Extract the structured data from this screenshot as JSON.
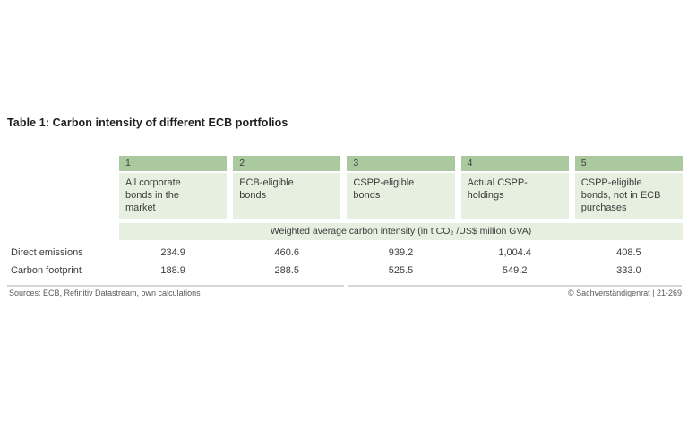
{
  "title": "Table 1: Carbon intensity of different ECB portfolios",
  "table": {
    "columns": [
      {
        "number": "1",
        "label": "All corporate bonds in the market"
      },
      {
        "number": "2",
        "label": "ECB-eligible bonds"
      },
      {
        "number": "3",
        "label": "CSPP-eligible bonds"
      },
      {
        "number": "4",
        "label": "Actual CSPP-holdings"
      },
      {
        "number": "5",
        "label": "CSPP-eligible bonds, not in ECB purchases"
      }
    ],
    "unit_band": "Weighted average carbon intensity (in t CO₂ /US$ million GVA)",
    "rows": [
      {
        "label": "Direct emissions",
        "values": [
          "234.9",
          "460.6",
          "939.2",
          "1,004.4",
          "408.5"
        ]
      },
      {
        "label": "Carbon footprint",
        "values": [
          "188.9",
          "288.5",
          "525.5",
          "549.2",
          "333.0"
        ]
      }
    ]
  },
  "footer": {
    "sources": "Sources: ECB, Refinitiv Datastream, own calculations",
    "copyright": "© Sachverständigenrat | 21-269"
  },
  "colors": {
    "header_band_green": "#abc99f",
    "light_green": "#e7efe0",
    "text_dark": "#3c3c3b",
    "footer_gray": "#58585a",
    "rule_gray": "#d9d5d7"
  },
  "chart_data": {
    "type": "table",
    "title": "Table 1: Carbon intensity of different ECB portfolios",
    "unit": "Weighted average carbon intensity (in t CO₂/US$ million GVA)",
    "categories": [
      "All corporate bonds in the market",
      "ECB-eligible bonds",
      "CSPP-eligible bonds",
      "Actual CSPP-holdings",
      "CSPP-eligible bonds, not in ECB purchases"
    ],
    "series": [
      {
        "name": "Direct emissions",
        "values": [
          234.9,
          460.6,
          939.2,
          1004.4,
          408.5
        ]
      },
      {
        "name": "Carbon footprint",
        "values": [
          188.9,
          288.5,
          525.5,
          549.2,
          333.0
        ]
      }
    ],
    "sources": "Sources: ECB, Refinitiv Datastream, own calculations"
  }
}
